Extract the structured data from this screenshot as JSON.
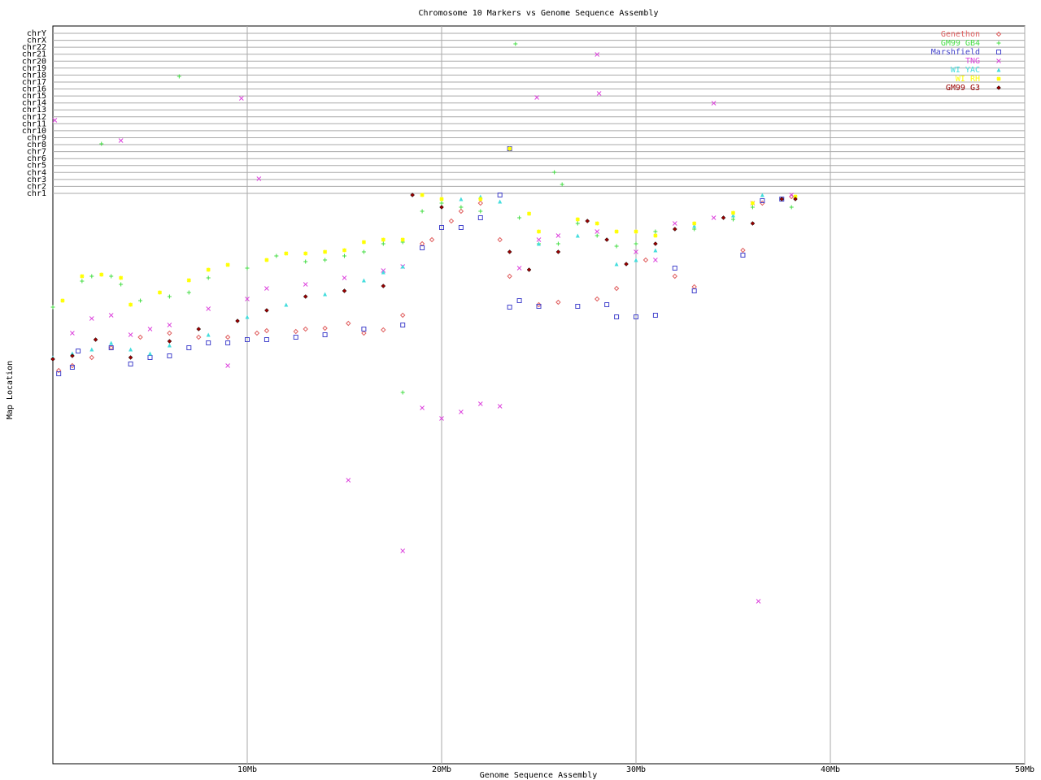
{
  "chart_data": {
    "type": "scatter",
    "title": "Chromosome 10 Markers vs Genome Sequence Assembly",
    "x_label": "Genome Sequence Assembly",
    "y_label": "Map Location",
    "xlim": [
      0,
      50
    ],
    "xticks": [
      {
        "value": 10,
        "label": "10Mb"
      },
      {
        "value": 20,
        "label": "20Mb"
      },
      {
        "value": 30,
        "label": "30Mb"
      },
      {
        "value": 40,
        "label": "40Mb"
      },
      {
        "value": 50,
        "label": "50Mb"
      }
    ],
    "ylim": [
      0,
      908
    ],
    "yticks": [
      {
        "value": 702,
        "label": "chr1"
      },
      {
        "value": 710.6,
        "label": "chr2"
      },
      {
        "value": 719.1,
        "label": "chr3"
      },
      {
        "value": 727.7,
        "label": "chr4"
      },
      {
        "value": 736.3,
        "label": "chr5"
      },
      {
        "value": 744.8,
        "label": "chr6"
      },
      {
        "value": 753.4,
        "label": "chr7"
      },
      {
        "value": 762,
        "label": "chr8"
      },
      {
        "value": 770.5,
        "label": "chr9"
      },
      {
        "value": 779.1,
        "label": "chr10"
      },
      {
        "value": 787.7,
        "label": "chr11"
      },
      {
        "value": 796.2,
        "label": "chr12"
      },
      {
        "value": 804.8,
        "label": "chr13"
      },
      {
        "value": 813.3,
        "label": "chr14"
      },
      {
        "value": 821.9,
        "label": "chr15"
      },
      {
        "value": 830.5,
        "label": "chr16"
      },
      {
        "value": 839,
        "label": "chr17"
      },
      {
        "value": 847.6,
        "label": "chr18"
      },
      {
        "value": 856.2,
        "label": "chr19"
      },
      {
        "value": 864.7,
        "label": "chr20"
      },
      {
        "value": 873.3,
        "label": "chr21"
      },
      {
        "value": 881.9,
        "label": "chr22"
      },
      {
        "value": 890.4,
        "label": "chrX"
      },
      {
        "value": 899,
        "label": "chrY"
      }
    ],
    "grid": true,
    "legend": "top-right",
    "series": [
      {
        "name": "Genethon",
        "color": "#e06060",
        "marker": "diamond",
        "x": [
          0.3,
          1.0,
          2.0,
          3.0,
          4.5,
          6,
          7.5,
          9,
          10.5,
          11,
          12.5,
          13,
          14,
          15.2,
          16,
          17,
          18,
          19,
          19.5,
          20.5,
          21,
          22,
          23,
          23.5,
          25,
          26,
          28,
          29,
          30.5,
          32,
          33,
          35.5,
          36.5,
          38
        ],
        "values": [
          484,
          490,
          500,
          512,
          525,
          530,
          525,
          525,
          530,
          533,
          532,
          535,
          536,
          542,
          530,
          534,
          552,
          640,
          645,
          668,
          680,
          690,
          645,
          600,
          565,
          568,
          572,
          585,
          620,
          600,
          587,
          632,
          690,
          698
        ]
      },
      {
        "name": "GM99 GB4",
        "color": "#44dd44",
        "marker": "plus",
        "x": [
          0,
          1.5,
          2,
          3,
          3.5,
          4.5,
          6,
          7,
          8,
          10,
          11.5,
          13,
          14,
          15,
          16,
          17,
          18,
          18,
          19,
          20,
          21,
          22,
          24,
          25,
          26,
          27,
          28,
          29,
          30,
          31,
          33,
          35,
          36,
          38,
          23.8,
          6.5,
          2.5,
          25.8,
          26.2
        ],
        "values": [
          562,
          594,
          600,
          600,
          590,
          570,
          575,
          580,
          598,
          610,
          625,
          618,
          620,
          625,
          630,
          640,
          642,
          457,
          680,
          690,
          685,
          680,
          672,
          640,
          640,
          665,
          650,
          637,
          640,
          655,
          658,
          670,
          685,
          685,
          886,
          846,
          763,
          728,
          713
        ]
      },
      {
        "name": "Marshfield",
        "color": "#4444cc",
        "marker": "square",
        "x": [
          0.3,
          1,
          1.3,
          3,
          4,
          5,
          6,
          7,
          8,
          9,
          10,
          11,
          12.5,
          14,
          16,
          18,
          19,
          20,
          21,
          22,
          23,
          23.5,
          24,
          25,
          27,
          28.5,
          29,
          30,
          31,
          32,
          33,
          35.5,
          36.5,
          37.5,
          23.5
        ],
        "values": [
          480,
          488,
          508,
          512,
          492,
          500,
          502,
          512,
          518,
          518,
          522,
          522,
          525,
          528,
          535,
          540,
          635,
          660,
          660,
          672,
          700,
          562,
          570,
          563,
          563,
          565,
          550,
          550,
          552,
          610,
          582,
          626,
          693,
          695,
          757
        ]
      },
      {
        "name": "TNG",
        "color": "#dd44dd",
        "marker": "x",
        "x": [
          0.1,
          1,
          2,
          3,
          4,
          5,
          6,
          8,
          10,
          11,
          13,
          15,
          17,
          18,
          18,
          15.2,
          19,
          20,
          21,
          22,
          23,
          24,
          25,
          26,
          28,
          30,
          31,
          32,
          34,
          36,
          38,
          9.7,
          3.5,
          10.6,
          24.9,
          28,
          28.1,
          34,
          36.3,
          9
        ],
        "values": [
          792,
          530,
          548,
          552,
          528,
          535,
          540,
          560,
          572,
          585,
          590,
          598,
          607,
          612,
          262,
          349,
          438,
          425,
          433,
          443,
          440,
          610,
          645,
          650,
          655,
          630,
          620,
          665,
          672,
          690,
          700,
          819,
          767,
          720,
          820,
          873,
          825,
          813,
          200,
          490
        ]
      },
      {
        "name": "WI YAC",
        "color": "#44dddd",
        "marker": "triangle",
        "x": [
          0,
          1,
          2,
          3,
          4,
          5,
          6,
          8,
          10,
          12,
          14,
          16,
          17,
          18,
          21,
          22,
          23,
          25,
          27,
          29,
          30,
          31,
          33,
          35,
          36.5
        ],
        "values": [
          500,
          505,
          510,
          518,
          510,
          505,
          515,
          528,
          550,
          565,
          578,
          595,
          605,
          612,
          695,
          698,
          692,
          640,
          650,
          615,
          620,
          632,
          662,
          675,
          700
        ]
      },
      {
        "name": "WI RH",
        "color": "#ffff00",
        "marker": "star",
        "x": [
          0.5,
          1.5,
          2.5,
          3.5,
          4,
          5.5,
          7,
          8,
          9,
          11,
          12,
          13,
          14,
          15,
          16,
          17,
          18,
          19,
          20,
          22,
          23.5,
          24.5,
          25,
          27,
          28,
          29,
          30,
          31,
          33,
          35,
          36,
          38.2
        ],
        "values": [
          570,
          600,
          602,
          598,
          565,
          580,
          595,
          608,
          614,
          620,
          628,
          628,
          630,
          632,
          642,
          645,
          645,
          700,
          695,
          695,
          757,
          677,
          655,
          670,
          665,
          655,
          655,
          650,
          665,
          678,
          690,
          698
        ]
      },
      {
        "name": "GM99 G3",
        "color": "#990000",
        "marker": "diamond-filled",
        "x": [
          0,
          1,
          2.2,
          4,
          6,
          7.5,
          9.5,
          11,
          13,
          15,
          17,
          18.5,
          20,
          23.5,
          24.5,
          26,
          27.5,
          28.5,
          29.5,
          31,
          32,
          34.5,
          36,
          37.5,
          38.2
        ],
        "values": [
          498,
          502,
          522,
          500,
          520,
          535,
          545,
          558,
          575,
          582,
          588,
          700,
          685,
          630,
          608,
          630,
          668,
          645,
          615,
          640,
          658,
          672,
          665,
          695,
          695
        ]
      }
    ]
  }
}
